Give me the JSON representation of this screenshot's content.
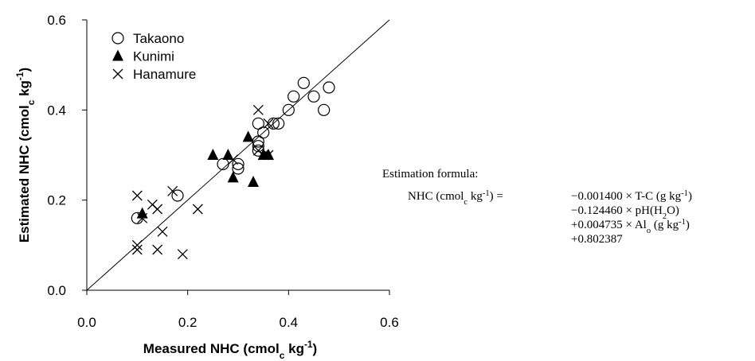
{
  "chart_data": {
    "type": "scatter",
    "xlabel": [
      "Measured NHC (cmol",
      {
        "sub": "c"
      },
      " kg",
      {
        "sup": "-1"
      },
      ")"
    ],
    "ylabel": [
      "Estimated NHC (cmol",
      {
        "sub": "c"
      },
      " kg",
      {
        "sup": "-1"
      },
      ")"
    ],
    "xlim": [
      0,
      0.6
    ],
    "ylim": [
      0,
      0.6
    ],
    "xticks": [
      {
        "value": 0,
        "label": "0.0"
      },
      {
        "value": 0.2,
        "label": "0.2"
      },
      {
        "value": 0.4,
        "label": "0.4"
      },
      {
        "value": 0.6,
        "label": "0.6"
      }
    ],
    "yticks": [
      {
        "value": 0,
        "label": "0.0"
      },
      {
        "value": 0.2,
        "label": "0.2"
      },
      {
        "value": 0.4,
        "label": "0.4"
      },
      {
        "value": 0.6,
        "label": "0.6"
      }
    ],
    "legend": "upper left",
    "series": [
      {
        "name": "Takaono",
        "color": "#000000",
        "marker": "circle",
        "x": [
          0.1,
          0.18,
          0.27,
          0.3,
          0.3,
          0.34,
          0.34,
          0.34,
          0.35,
          0.34,
          0.38,
          0.4,
          0.41,
          0.43,
          0.45,
          0.47,
          0.48,
          0.37
        ],
        "values": [
          0.16,
          0.21,
          0.28,
          0.28,
          0.27,
          0.32,
          0.31,
          0.37,
          0.35,
          0.33,
          0.37,
          0.4,
          0.43,
          0.46,
          0.43,
          0.4,
          0.45,
          0.37
        ]
      },
      {
        "name": "Kunimi",
        "color": "#000000",
        "marker": "triangle",
        "x": [
          0.11,
          0.25,
          0.28,
          0.29,
          0.32,
          0.33,
          0.35,
          0.36
        ],
        "values": [
          0.17,
          0.3,
          0.3,
          0.25,
          0.34,
          0.24,
          0.3,
          0.3
        ]
      },
      {
        "name": "Hanamure",
        "color": "#000000",
        "marker": "cross",
        "x": [
          0.1,
          0.1,
          0.1,
          0.11,
          0.13,
          0.14,
          0.14,
          0.15,
          0.17,
          0.19,
          0.22,
          0.29,
          0.34,
          0.34,
          0.35,
          0.36,
          0.36
        ],
        "values": [
          0.21,
          0.09,
          0.1,
          0.16,
          0.19,
          0.18,
          0.09,
          0.13,
          0.22,
          0.08,
          0.18,
          0.29,
          0.4,
          0.31,
          0.3,
          0.3,
          0.37
        ]
      }
    ],
    "annotation": {
      "heading": "Estimation formula:",
      "lhs": [
        "NHC (cmol",
        {
          "sub": "c"
        },
        " kg",
        {
          "sup": "-1"
        },
        ") ="
      ],
      "terms": [
        [
          "−0.001400 × T-C (g kg",
          {
            "sup": "-1"
          },
          ")"
        ],
        [
          "−0.124460 × pH(H",
          {
            "sub": "2"
          },
          "O)"
        ],
        [
          "+0.004735 × Al",
          {
            "sub": "o"
          },
          " (g kg",
          {
            "sup": "-1"
          },
          ")"
        ],
        [
          "+0.802387"
        ]
      ]
    }
  }
}
